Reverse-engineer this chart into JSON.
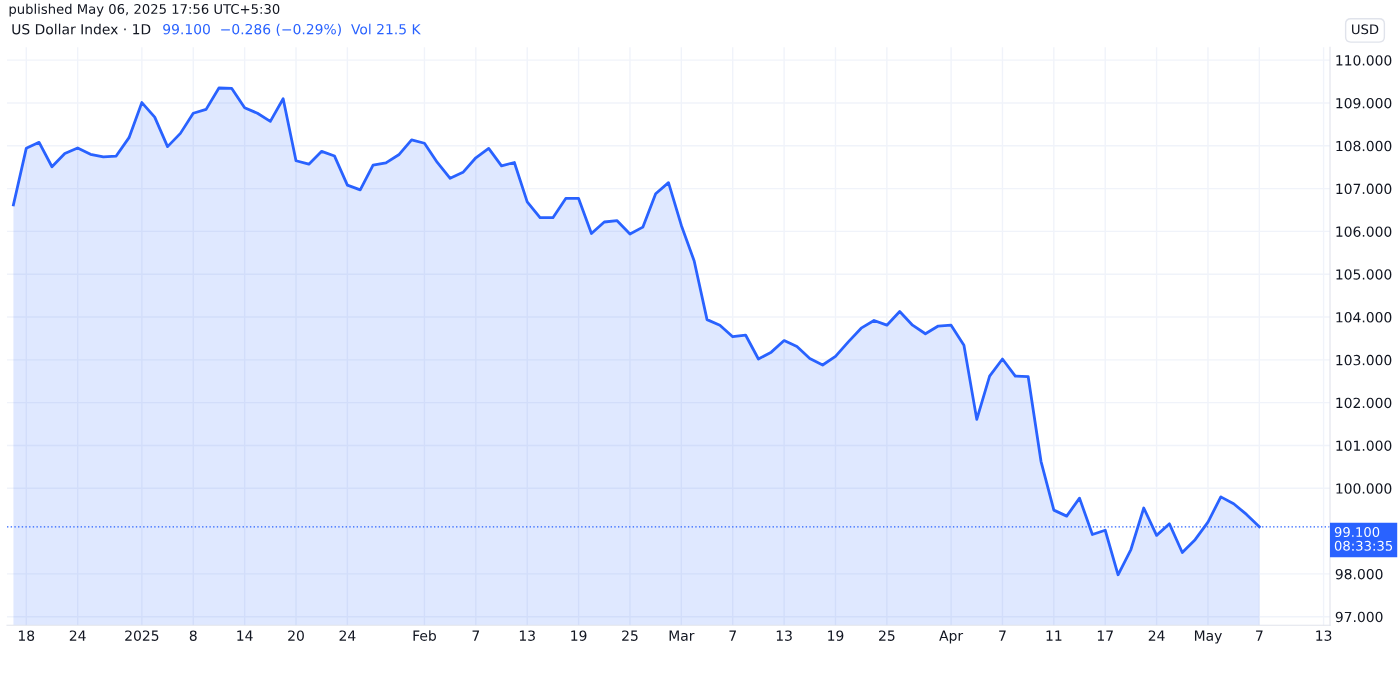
{
  "chart_data": {
    "type": "area",
    "title": "US Dollar Index · 1D",
    "subtitle": "99.100  −0.286 (−0.29%)  Vol 21.5 K",
    "annotations": [
      "published May 06, 2025 17:56 UTC+5:30",
      "USD"
    ],
    "categories": [
      null,
      "18",
      null,
      null,
      null,
      "24",
      null,
      null,
      null,
      null,
      "2025",
      null,
      null,
      null,
      "8",
      null,
      null,
      null,
      "14",
      null,
      null,
      null,
      "20",
      null,
      null,
      null,
      "24",
      null,
      null,
      null,
      null,
      null,
      "Feb",
      null,
      null,
      null,
      "7",
      null,
      null,
      null,
      "13",
      null,
      null,
      null,
      "19",
      null,
      null,
      null,
      "25",
      null,
      null,
      null,
      "Mar",
      null,
      null,
      null,
      "7",
      null,
      null,
      null,
      "13",
      null,
      null,
      null,
      "19",
      null,
      null,
      null,
      "25",
      null,
      null,
      null,
      null,
      "Apr",
      null,
      null,
      null,
      "7",
      null,
      null,
      null,
      "11",
      null,
      null,
      null,
      "17",
      null,
      null,
      null,
      "24",
      null,
      null,
      null,
      "May",
      null,
      null,
      null,
      "7",
      null,
      null,
      null,
      null,
      "13"
    ],
    "series": [
      {
        "color": "#2962ff",
        "values": [
          106.62,
          107.94,
          108.08,
          107.51,
          107.82,
          107.95,
          107.8,
          107.74,
          107.76,
          108.19,
          109.01,
          108.67,
          107.98,
          108.29,
          108.76,
          108.85,
          109.35,
          109.34,
          108.89,
          108.76,
          108.57,
          109.1,
          107.65,
          107.57,
          107.87,
          107.76,
          107.08,
          106.97,
          107.55,
          107.6,
          107.79,
          108.14,
          108.06,
          107.61,
          107.24,
          107.38,
          107.72,
          107.94,
          107.53,
          107.61,
          106.69,
          106.32,
          106.32,
          106.77,
          106.77,
          105.95,
          106.22,
          106.25,
          105.94,
          106.1,
          106.88,
          107.14,
          106.14,
          105.31,
          103.94,
          103.81,
          103.54,
          103.58,
          103.02,
          103.18,
          103.45,
          103.31,
          103.03,
          102.88,
          103.08,
          103.42,
          103.74,
          103.92,
          103.81,
          104.13,
          103.81,
          103.61,
          103.79,
          103.81,
          103.34,
          101.61,
          102.62,
          103.02,
          102.62,
          102.61,
          100.63,
          99.49,
          99.35,
          99.77,
          98.92,
          99.02,
          97.98,
          98.57,
          99.54,
          98.9,
          99.17,
          98.5,
          98.8,
          99.21,
          99.8,
          99.64,
          99.39,
          99.1,
          null,
          null,
          null,
          null,
          null
        ]
      }
    ],
    "ylim": [
      96.8,
      110.3
    ],
    "yticks": [
      {
        "value": 97,
        "label": "97.000"
      },
      {
        "value": 98,
        "label": "98.000"
      },
      {
        "value": 100,
        "label": "100.000"
      },
      {
        "value": 101,
        "label": "101.000"
      },
      {
        "value": 102,
        "label": "102.000"
      },
      {
        "value": 103,
        "label": "103.000"
      },
      {
        "value": 104,
        "label": "104.000"
      },
      {
        "value": 105,
        "label": "105.000"
      },
      {
        "value": 106,
        "label": "106.000"
      },
      {
        "value": 107,
        "label": "107.000"
      },
      {
        "value": 108,
        "label": "108.000"
      },
      {
        "value": 109,
        "label": "109.000"
      },
      {
        "value": 110,
        "label": "110.000"
      }
    ],
    "ref_lines": [
      {
        "axis": "y",
        "value": 99.1,
        "label": "99.100\n08:33:35",
        "color": "#2962ff",
        "line_style": "dotted"
      }
    ],
    "grid": true
  }
}
